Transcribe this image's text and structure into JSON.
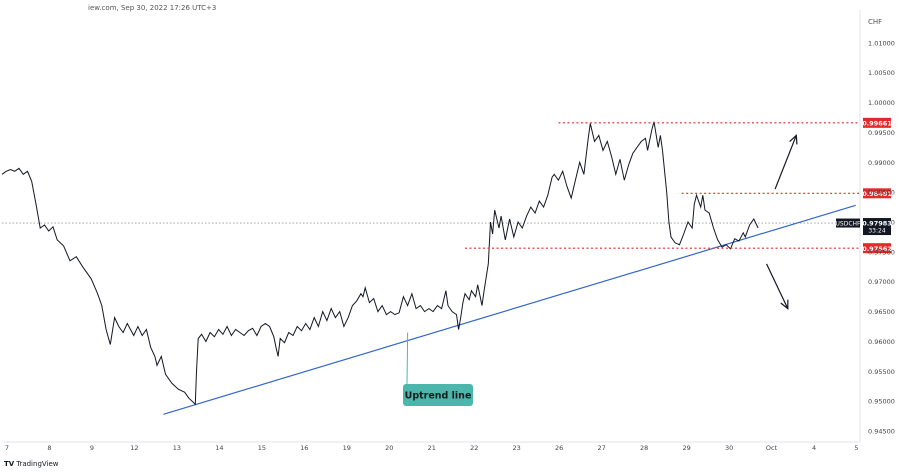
{
  "header": {
    "source": "iew.com, Sep 30, 2022 17:26 UTC+3"
  },
  "branding": {
    "logo_text": "TV",
    "name": "TradingView"
  },
  "chart_data": {
    "type": "line",
    "currency_label": "CHF",
    "y_ticks": [
      "1.01000",
      "1.00500",
      "1.00000",
      "0.99500",
      "0.99000",
      "0.98500",
      "0.98000",
      "0.97500",
      "0.97000",
      "0.96500",
      "0.96000",
      "0.95500",
      "0.95000",
      "0.94500"
    ],
    "ylim": [
      0.9435,
      1.0145
    ],
    "x_ticks": [
      {
        "label": "7",
        "x": 0
      },
      {
        "label": "8",
        "x": 1
      },
      {
        "label": "9",
        "x": 2
      },
      {
        "label": "12",
        "x": 3
      },
      {
        "label": "13",
        "x": 4
      },
      {
        "label": "14",
        "x": 5
      },
      {
        "label": "15",
        "x": 6
      },
      {
        "label": "16",
        "x": 7
      },
      {
        "label": "19",
        "x": 8
      },
      {
        "label": "20",
        "x": 9
      },
      {
        "label": "21",
        "x": 10
      },
      {
        "label": "22",
        "x": 11
      },
      {
        "label": "23",
        "x": 12
      },
      {
        "label": "26",
        "x": 13
      },
      {
        "label": "27",
        "x": 14
      },
      {
        "label": "28",
        "x": 15
      },
      {
        "label": "29",
        "x": 16
      },
      {
        "label": "30",
        "x": 17
      },
      {
        "label": "Oct",
        "x": 18
      },
      {
        "label": "4",
        "x": 19
      },
      {
        "label": "5",
        "x": 20
      }
    ],
    "xlim": [
      0,
      20.2
    ],
    "series": [
      {
        "values": [
          [
            0.0,
            0.988
          ],
          [
            0.1,
            0.9885
          ],
          [
            0.2,
            0.9888
          ],
          [
            0.3,
            0.9885
          ],
          [
            0.4,
            0.989
          ],
          [
            0.5,
            0.988
          ],
          [
            0.6,
            0.9885
          ],
          [
            0.7,
            0.9868
          ],
          [
            0.8,
            0.983
          ],
          [
            0.85,
            0.981
          ],
          [
            0.9,
            0.979
          ],
          [
            1.0,
            0.9795
          ],
          [
            1.1,
            0.9785
          ],
          [
            1.2,
            0.9792
          ],
          [
            1.3,
            0.977
          ],
          [
            1.45,
            0.976
          ],
          [
            1.6,
            0.9735
          ],
          [
            1.75,
            0.9742
          ],
          [
            1.9,
            0.9725
          ],
          [
            2.1,
            0.9705
          ],
          [
            2.25,
            0.968
          ],
          [
            2.35,
            0.966
          ],
          [
            2.45,
            0.962
          ],
          [
            2.55,
            0.9595
          ],
          [
            2.65,
            0.964
          ],
          [
            2.75,
            0.9625
          ],
          [
            2.85,
            0.9615
          ],
          [
            2.95,
            0.963
          ],
          [
            3.1,
            0.961
          ],
          [
            3.2,
            0.9625
          ],
          [
            3.3,
            0.961
          ],
          [
            3.4,
            0.962
          ],
          [
            3.5,
            0.959
          ],
          [
            3.6,
            0.9575
          ],
          [
            3.65,
            0.956
          ],
          [
            3.75,
            0.9575
          ],
          [
            3.85,
            0.9545
          ],
          [
            4.0,
            0.953
          ],
          [
            4.15,
            0.952
          ],
          [
            4.3,
            0.9515
          ],
          [
            4.4,
            0.9505
          ],
          [
            4.55,
            0.9495
          ],
          [
            4.58,
            0.955
          ],
          [
            4.62,
            0.9605
          ],
          [
            4.7,
            0.9612
          ],
          [
            4.8,
            0.96
          ],
          [
            4.9,
            0.9615
          ],
          [
            5.0,
            0.9608
          ],
          [
            5.1,
            0.962
          ],
          [
            5.2,
            0.9612
          ],
          [
            5.3,
            0.9625
          ],
          [
            5.4,
            0.961
          ],
          [
            5.5,
            0.962
          ],
          [
            5.6,
            0.9615
          ],
          [
            5.7,
            0.961
          ],
          [
            5.8,
            0.9618
          ],
          [
            5.9,
            0.9622
          ],
          [
            6.0,
            0.961
          ],
          [
            6.1,
            0.9625
          ],
          [
            6.2,
            0.963
          ],
          [
            6.3,
            0.9625
          ],
          [
            6.4,
            0.9608
          ],
          [
            6.45,
            0.959
          ],
          [
            6.5,
            0.9575
          ],
          [
            6.55,
            0.9605
          ],
          [
            6.65,
            0.9598
          ],
          [
            6.75,
            0.9615
          ],
          [
            6.85,
            0.961
          ],
          [
            6.95,
            0.9625
          ],
          [
            7.05,
            0.9618
          ],
          [
            7.15,
            0.963
          ],
          [
            7.25,
            0.962
          ],
          [
            7.35,
            0.964
          ],
          [
            7.45,
            0.9625
          ],
          [
            7.55,
            0.965
          ],
          [
            7.65,
            0.9635
          ],
          [
            7.75,
            0.9655
          ],
          [
            7.85,
            0.964
          ],
          [
            7.95,
            0.965
          ],
          [
            8.05,
            0.9625
          ],
          [
            8.15,
            0.964
          ],
          [
            8.25,
            0.966
          ],
          [
            8.35,
            0.9668
          ],
          [
            8.45,
            0.968
          ],
          [
            8.5,
            0.9675
          ],
          [
            8.55,
            0.969
          ],
          [
            8.65,
            0.9665
          ],
          [
            8.75,
            0.9672
          ],
          [
            8.85,
            0.965
          ],
          [
            8.95,
            0.966
          ],
          [
            9.05,
            0.9645
          ],
          [
            9.15,
            0.965
          ],
          [
            9.25,
            0.9645
          ],
          [
            9.35,
            0.9648
          ],
          [
            9.45,
            0.9675
          ],
          [
            9.55,
            0.966
          ],
          [
            9.65,
            0.968
          ],
          [
            9.75,
            0.9655
          ],
          [
            9.85,
            0.966
          ],
          [
            9.95,
            0.965
          ],
          [
            10.05,
            0.9655
          ],
          [
            10.15,
            0.965
          ],
          [
            10.25,
            0.966
          ],
          [
            10.35,
            0.9655
          ],
          [
            10.45,
            0.9685
          ],
          [
            10.5,
            0.966
          ],
          [
            10.6,
            0.965
          ],
          [
            10.7,
            0.9645
          ],
          [
            10.75,
            0.962
          ],
          [
            10.8,
            0.964
          ],
          [
            10.85,
            0.9665
          ],
          [
            10.9,
            0.968
          ],
          [
            11.0,
            0.967
          ],
          [
            11.05,
            0.9685
          ],
          [
            11.15,
            0.9675
          ],
          [
            11.2,
            0.9695
          ],
          [
            11.3,
            0.966
          ],
          [
            11.35,
            0.9685
          ],
          [
            11.45,
            0.973
          ],
          [
            11.5,
            0.98
          ],
          [
            11.55,
            0.978
          ],
          [
            11.6,
            0.982
          ],
          [
            11.7,
            0.979
          ],
          [
            11.75,
            0.981
          ],
          [
            11.85,
            0.977
          ],
          [
            11.95,
            0.9805
          ],
          [
            12.05,
            0.9775
          ],
          [
            12.15,
            0.98
          ],
          [
            12.25,
            0.979
          ],
          [
            12.35,
            0.981
          ],
          [
            12.45,
            0.9825
          ],
          [
            12.55,
            0.9815
          ],
          [
            12.65,
            0.9835
          ],
          [
            12.75,
            0.9825
          ],
          [
            12.85,
            0.9845
          ],
          [
            12.9,
            0.986
          ],
          [
            12.95,
            0.9875
          ],
          [
            13.0,
            0.988
          ],
          [
            13.1,
            0.987
          ],
          [
            13.2,
            0.9885
          ],
          [
            13.3,
            0.986
          ],
          [
            13.4,
            0.984
          ],
          [
            13.5,
            0.987
          ],
          [
            13.6,
            0.99
          ],
          [
            13.7,
            0.988
          ],
          [
            13.8,
            0.994
          ],
          [
            13.85,
            0.9965
          ],
          [
            13.95,
            0.9935
          ],
          [
            14.05,
            0.9945
          ],
          [
            14.15,
            0.992
          ],
          [
            14.25,
            0.9935
          ],
          [
            14.35,
            0.991
          ],
          [
            14.45,
            0.988
          ],
          [
            14.55,
            0.9905
          ],
          [
            14.65,
            0.987
          ],
          [
            14.75,
            0.9895
          ],
          [
            14.85,
            0.9915
          ],
          [
            14.95,
            0.9925
          ],
          [
            15.05,
            0.9935
          ],
          [
            15.15,
            0.994
          ],
          [
            15.2,
            0.992
          ],
          [
            15.3,
            0.9955
          ],
          [
            15.35,
            0.9968
          ],
          [
            15.45,
            0.9925
          ],
          [
            15.5,
            0.9945
          ],
          [
            15.55,
            0.992
          ],
          [
            15.65,
            0.985
          ],
          [
            15.7,
            0.98
          ],
          [
            15.75,
            0.9775
          ],
          [
            15.85,
            0.9765
          ],
          [
            15.95,
            0.9762
          ],
          [
            16.05,
            0.978
          ],
          [
            16.15,
            0.98
          ],
          [
            16.25,
            0.979
          ],
          [
            16.3,
            0.983
          ],
          [
            16.35,
            0.9845
          ],
          [
            16.45,
            0.9825
          ],
          [
            16.5,
            0.9845
          ],
          [
            16.55,
            0.982
          ],
          [
            16.65,
            0.9815
          ],
          [
            16.75,
            0.979
          ],
          [
            16.85,
            0.977
          ],
          [
            16.95,
            0.9758
          ],
          [
            17.05,
            0.9762
          ],
          [
            17.15,
            0.9755
          ],
          [
            17.25,
            0.9772
          ],
          [
            17.35,
            0.9768
          ],
          [
            17.45,
            0.9782
          ],
          [
            17.5,
            0.9775
          ],
          [
            17.6,
            0.9795
          ],
          [
            17.7,
            0.9805
          ],
          [
            17.8,
            0.979
          ]
        ]
      }
    ],
    "trendline": {
      "label": "Uptrend line",
      "color": "#3366cc",
      "from": [
        3.8,
        0.9478
      ],
      "to": [
        20.1,
        0.9828
      ]
    },
    "levels": [
      {
        "value": 0.99661,
        "label": "0.99661",
        "color": "#e32929",
        "x_start": 13.1
      },
      {
        "value": 0.98481,
        "label": "0.98481",
        "color": "#e32929",
        "x_start": 16.0
      },
      {
        "value": 0.97562,
        "label": "0.97562",
        "color": "#e32929",
        "x_start": 10.9
      }
    ],
    "current": {
      "symbol": "USDCHF",
      "value": 0.97983,
      "price_label": "0.97983",
      "countdown": "33:24"
    },
    "arrows": [
      {
        "direction": "up",
        "from": [
          18.2,
          0.9855
        ],
        "to": [
          18.7,
          0.9945
        ]
      },
      {
        "direction": "down",
        "from": [
          18.0,
          0.973
        ],
        "to": [
          18.5,
          0.9655
        ]
      }
    ],
    "grid": false,
    "legend": "none"
  }
}
